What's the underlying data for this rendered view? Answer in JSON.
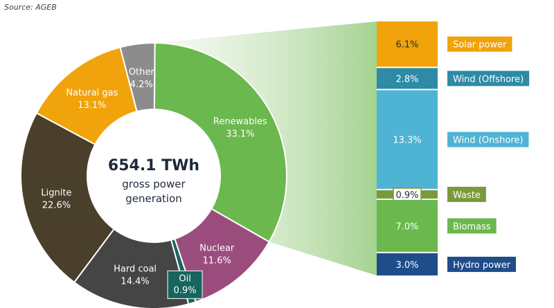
{
  "source": "Source: AGEB",
  "chart_data": [
    {
      "type": "pie",
      "center_value": "654.1 TWh",
      "center_line1": "gross power",
      "center_line2": "generation",
      "slices": [
        {
          "name": "Renewables",
          "value": 33.1,
          "label": "33.1%",
          "color": "#6bb84e",
          "label_color": "#ffffff"
        },
        {
          "name": "Nuclear",
          "value": 11.6,
          "label": "11.6%",
          "color": "#9a4d7c",
          "label_color": "#ffffff"
        },
        {
          "name": "Oil",
          "value": 0.9,
          "label": "0.9%",
          "color": "#16655e",
          "label_color": "#ffffff"
        },
        {
          "name": "Hard coal",
          "value": 14.4,
          "label": "14.4%",
          "color": "#454545",
          "label_color": "#ffffff"
        },
        {
          "name": "Lignite",
          "value": 22.6,
          "label": "22.6%",
          "color": "#4a3f2b",
          "label_color": "#ffffff"
        },
        {
          "name": "Natural gas",
          "value": 13.1,
          "label": "13.1%",
          "color": "#f0a30a",
          "label_color": "#ffffff"
        },
        {
          "name": "Other",
          "value": 4.2,
          "label": "4.2%",
          "color": "#8c8c8c",
          "label_color": "#ffffff"
        }
      ]
    },
    {
      "type": "bar",
      "stacked": true,
      "parent": "Renewables",
      "segments": [
        {
          "name": "Solar power",
          "value": 6.1,
          "label": "6.1%",
          "color": "#f0a30a",
          "text_color": "#1e2a3a"
        },
        {
          "name": "Wind (Offshore)",
          "value": 2.8,
          "label": "2.8%",
          "color": "#2e8aa5",
          "text_color": "#ffffff"
        },
        {
          "name": "Wind (Onshore)",
          "value": 13.3,
          "label": "13.3%",
          "color": "#4fb3d4",
          "text_color": "#ffffff"
        },
        {
          "name": "Waste",
          "value": 0.9,
          "label": "0.9%",
          "color": "#7a9a3a",
          "text_color": "#1e2a3a"
        },
        {
          "name": "Biomass",
          "value": 7.0,
          "label": "7.0%",
          "color": "#6bb84e",
          "text_color": "#ffffff"
        },
        {
          "name": "Hydro power",
          "value": 3.0,
          "label": "3.0%",
          "color": "#1f4d8a",
          "text_color": "#ffffff"
        }
      ]
    }
  ]
}
